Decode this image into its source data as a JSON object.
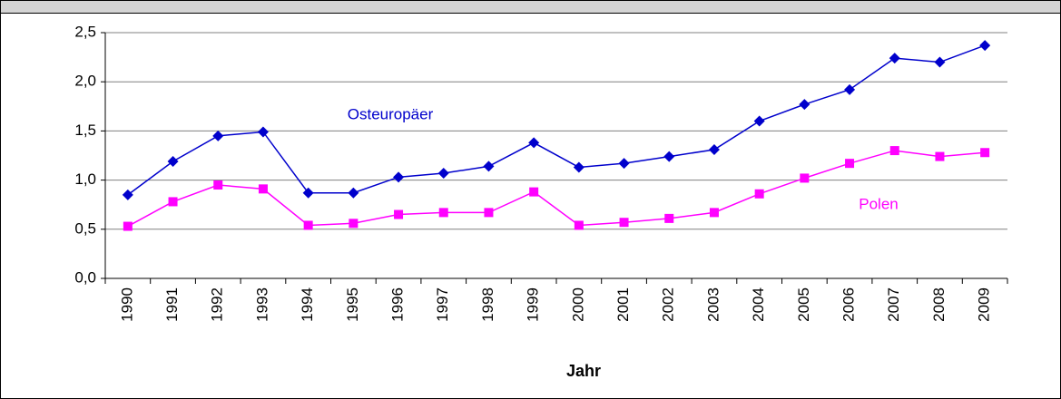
{
  "chart_data": {
    "type": "line",
    "xlabel": "Jahr",
    "categories": [
      "1990",
      "1991",
      "1992",
      "1993",
      "1994",
      "1995",
      "1996",
      "1997",
      "1998",
      "1999",
      "2000",
      "2001",
      "2002",
      "2003",
      "2004",
      "2005",
      "2006",
      "2007",
      "2008",
      "2009"
    ],
    "series": [
      {
        "name": "Osteuropäer",
        "color": "#0000cc",
        "marker": "diamond",
        "values": [
          0.85,
          1.19,
          1.45,
          1.49,
          0.87,
          0.87,
          1.03,
          1.07,
          1.14,
          1.38,
          1.13,
          1.17,
          1.24,
          1.31,
          1.6,
          1.77,
          1.92,
          2.24,
          2.2,
          2.37
        ]
      },
      {
        "name": "Polen",
        "color": "#ff00ff",
        "marker": "square",
        "values": [
          0.53,
          0.78,
          0.95,
          0.91,
          0.54,
          0.56,
          0.65,
          0.67,
          0.67,
          0.88,
          0.54,
          0.57,
          0.61,
          0.67,
          0.86,
          1.02,
          1.17,
          1.3,
          1.24,
          1.28
        ]
      }
    ],
    "ylim": [
      0,
      2.5
    ],
    "yticks": [
      {
        "value": 0,
        "label": "0,0"
      },
      {
        "value": 0.5,
        "label": "0,5"
      },
      {
        "value": 1,
        "label": "1,0"
      },
      {
        "value": 1.5,
        "label": "1,5"
      },
      {
        "value": 2,
        "label": "2,0"
      },
      {
        "value": 2.5,
        "label": "2,5"
      }
    ],
    "grid": true
  }
}
